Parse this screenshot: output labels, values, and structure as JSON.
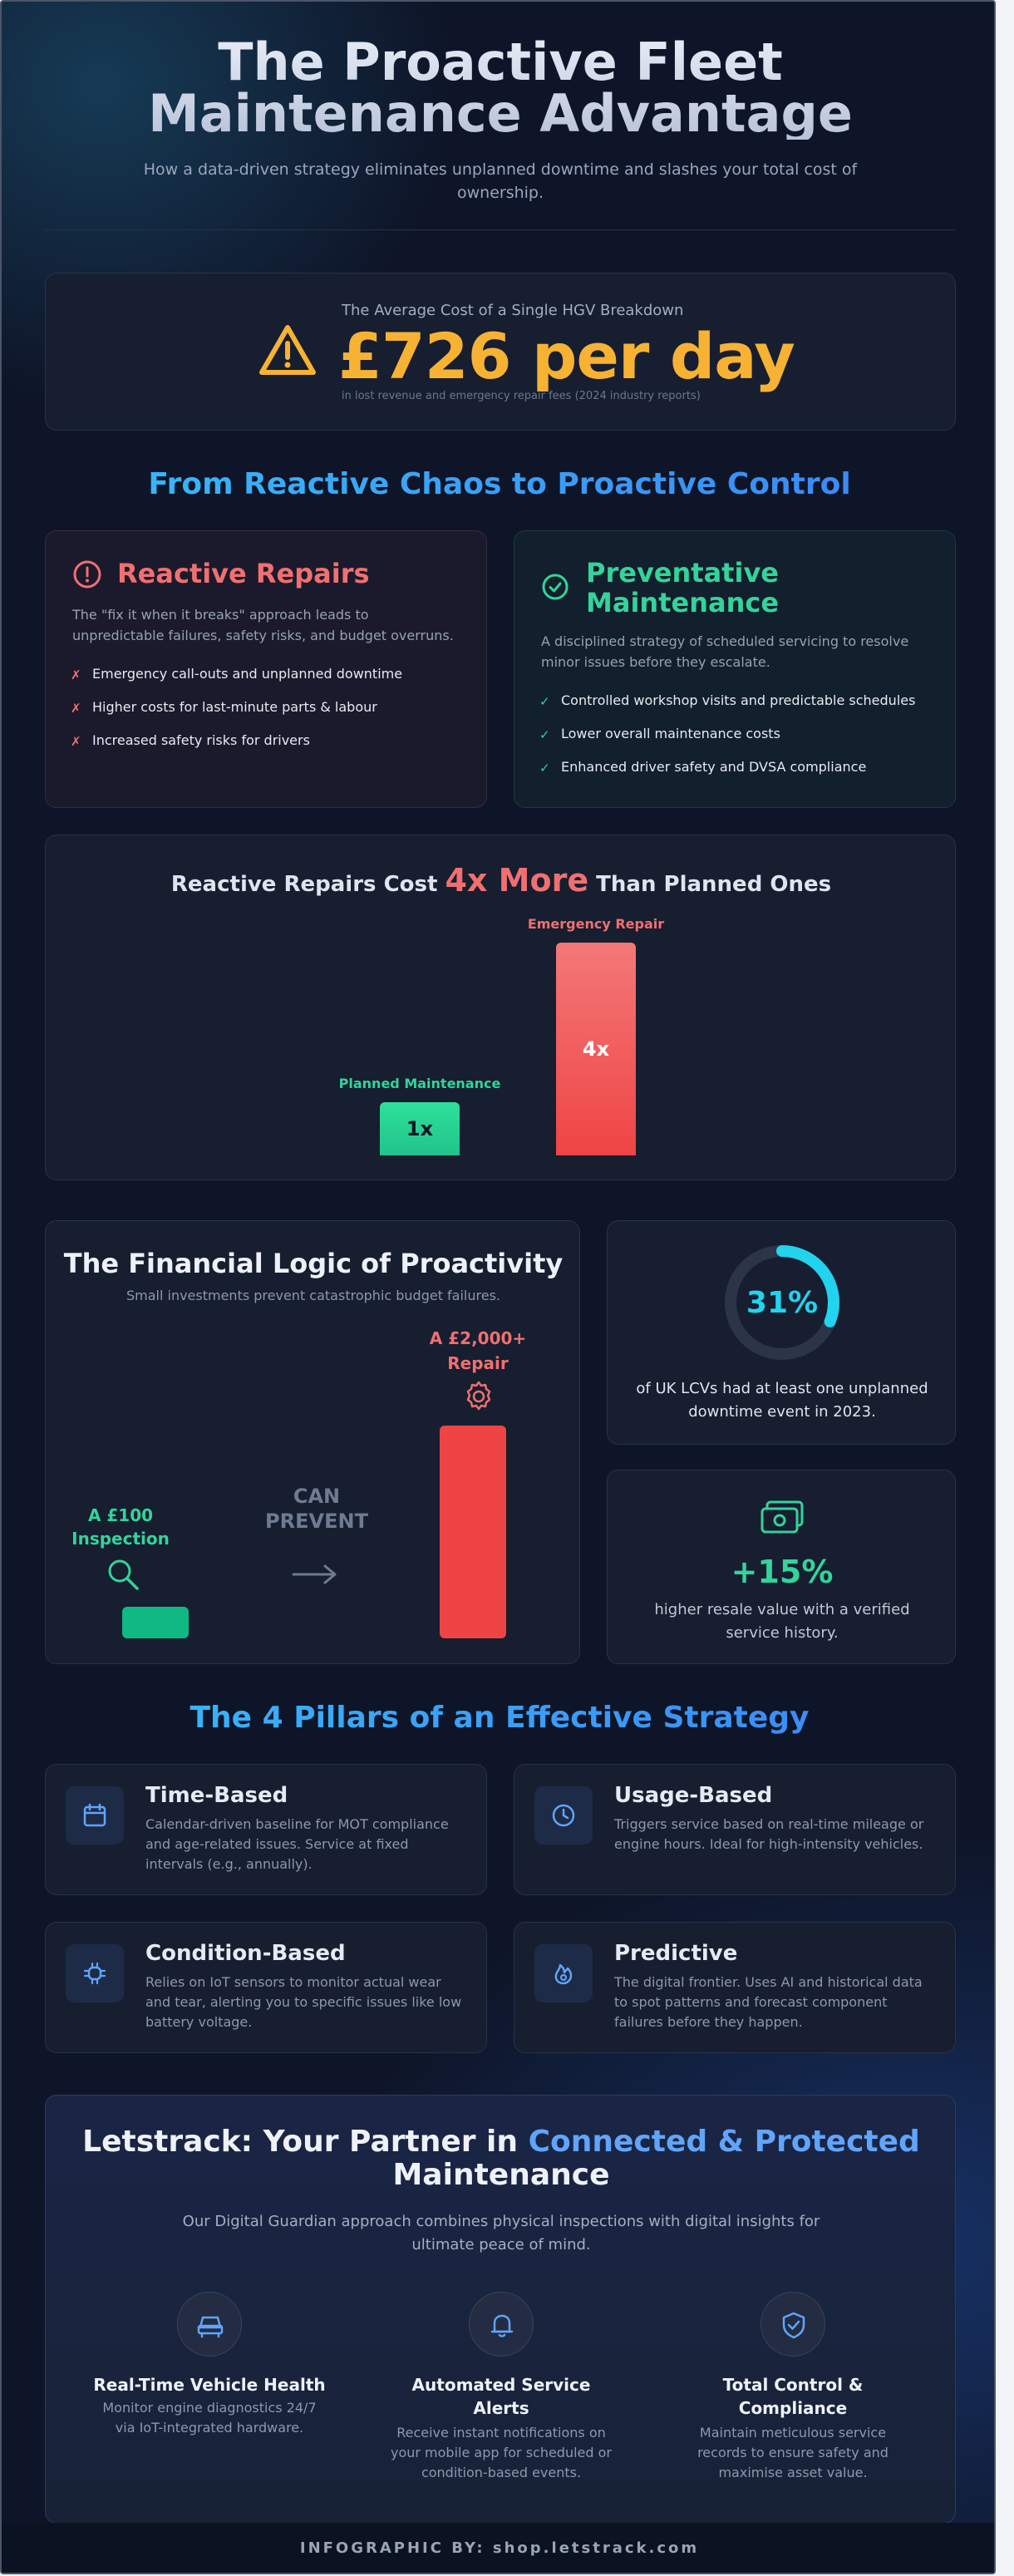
{
  "header": {
    "title": "The Proactive Fleet Maintenance Advantage",
    "subtitle": "How a data-driven strategy eliminates unplanned downtime and slashes your total cost of ownership."
  },
  "hero": {
    "label": "The Average Cost of a Single HGV Breakdown",
    "amount": "£726 per day",
    "note": "in lost revenue and emergency repair fees (2024 industry reports)",
    "icon": "warning-icon",
    "accent": "#f7b233"
  },
  "section_reactive": {
    "title_a": "From Reactive Chaos to Proactive Control",
    "reactive": {
      "title": "Reactive Repairs",
      "icon": "alert-circle-icon",
      "desc": "The \"fix it when it breaks\" approach leads to unpredictable failures, safety risks, and budget overruns.",
      "items": [
        "Emergency call-outs and unplanned downtime",
        "Higher costs for last-minute parts & labour",
        "Increased safety risks for drivers"
      ],
      "marker": "✗",
      "color": "#f07070"
    },
    "preventative": {
      "title_line1": "Preventative",
      "title_line2": "Maintenance",
      "icon": "check-circle-icon",
      "desc": "A disciplined strategy of scheduled servicing to resolve minor issues before they escalate.",
      "items": [
        "Controlled workshop visits and predictable schedules",
        "Lower overall maintenance costs",
        "Enhanced driver safety and DVSA compliance"
      ],
      "marker": "✓",
      "color": "#34d39a"
    }
  },
  "chart_data": [
    {
      "type": "bar",
      "title_pre": "Reactive Repairs Cost",
      "title_em": "4x More",
      "title_post": "Than Planned Ones",
      "categories": [
        "Planned Maintenance",
        "Emergency Repair"
      ],
      "values": [
        1,
        4
      ],
      "value_labels": [
        "1x",
        "4x"
      ],
      "colors": [
        "#22c38a",
        "#ef4444"
      ]
    },
    {
      "type": "bar",
      "title": "The Financial Logic of Proactivity",
      "subtitle": "Small investments prevent catastrophic budget failures.",
      "categories": [
        "A £100 Inspection",
        "A £2,000+ Repair"
      ],
      "values": [
        100,
        2000
      ],
      "colors": [
        "#10b981",
        "#ef4444"
      ],
      "middle_label_1": "CAN",
      "middle_label_2": "PREVENT"
    }
  ],
  "financial": {
    "left_label_1": "A £100",
    "left_label_2": "Inspection",
    "right_label_1": "A £2,000+",
    "right_label_2": "Repair",
    "left_icon": "magnifier-icon",
    "right_icon": "gear-icon",
    "arrow_icon": "arrow-right-icon"
  },
  "stat_donut": {
    "value": "31%",
    "percent": 31,
    "text": "of UK LCVs had at least one unplanned downtime event in 2023.",
    "color": "#22d3ee"
  },
  "stat_resale": {
    "value": "+15%",
    "text": "higher resale value with a verified service history.",
    "icon": "money-icon",
    "color": "#34d39a"
  },
  "pillars": {
    "title": "The 4 Pillars of an Effective Strategy",
    "items": [
      {
        "title": "Time-Based",
        "desc": "Calendar-driven baseline for MOT compliance and age-related issues. Service at fixed intervals (e.g., annually).",
        "icon": "calendar-icon"
      },
      {
        "title": "Usage-Based",
        "desc": "Triggers service based on real-time mileage or engine hours. Ideal for high-intensity vehicles.",
        "icon": "clock-icon"
      },
      {
        "title": "Condition-Based",
        "desc": "Relies on IoT sensors to monitor actual wear and tear, alerting you to specific issues like low battery voltage.",
        "icon": "chip-icon"
      },
      {
        "title": "Predictive",
        "desc": "The digital frontier. Uses AI and historical data to spot patterns and forecast component failures before they happen.",
        "icon": "flame-icon"
      }
    ]
  },
  "partner": {
    "title_a": "Letstrack: Your Partner in",
    "title_b": "Connected & Protected",
    "title_c": "Maintenance",
    "desc": "Our Digital Guardian approach combines physical inspections with digital insights for ultimate peace of mind.",
    "features": [
      {
        "title_1": "Real-Time Vehicle Health",
        "title_2": "",
        "desc": "Monitor engine diagnostics 24/7 via IoT-integrated hardware.",
        "icon": "car-icon"
      },
      {
        "title_1": "Automated Service",
        "title_2": "Alerts",
        "desc": "Receive instant notifications on your mobile app for scheduled or condition-based events.",
        "icon": "bell-icon"
      },
      {
        "title_1": "Total Control &",
        "title_2": "Compliance",
        "desc": "Maintain meticulous service records to ensure safety and maximise asset value.",
        "icon": "shield-check-icon"
      }
    ]
  },
  "footer": {
    "text": "INFOGRAPHIC BY: shop.letstrack.com"
  }
}
